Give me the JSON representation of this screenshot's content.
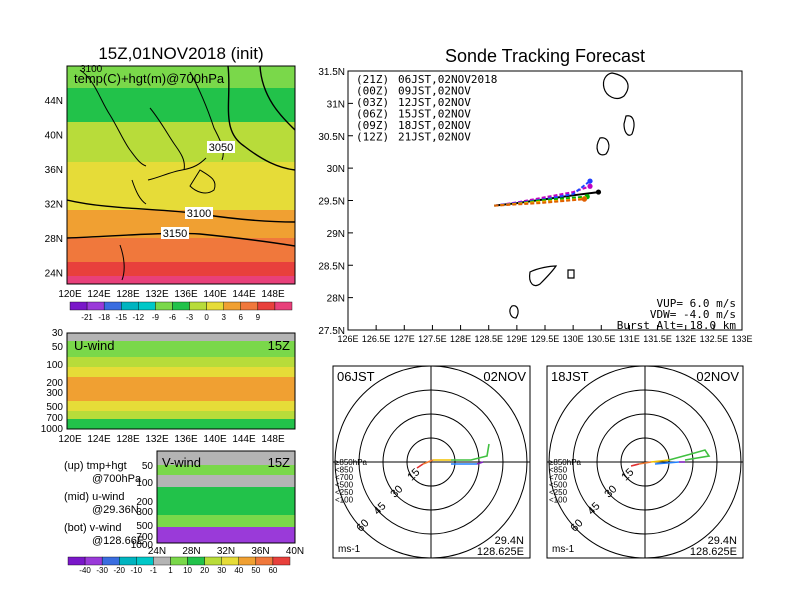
{
  "colors": {
    "purple": "#7a17c9",
    "magenta": "#c400b8",
    "violet": "#9a3ad9",
    "blue": "#3a6de0",
    "teal": "#00b4c0",
    "cyan": "#00c8c8",
    "lightgreen": "#7ad84a",
    "green": "#22c24a",
    "yellowgreen": "#b8dc3a",
    "yellow": "#e6dc38",
    "orange": "#f0a032",
    "orangered": "#f0783c",
    "red": "#e8403c",
    "pink": "#e8407a",
    "gray": "#b4b4b4",
    "track_21z": "#000000",
    "track_00z": "#c000c0",
    "track_03z": "#2040ff",
    "track_06z": "#00b000",
    "track_09z": "#f0b000",
    "track_12z": "#e06000"
  },
  "left": {
    "title": "15Z,01NOV2018 (init)",
    "map_label": "temp(C)+hgt(m)@700hPa",
    "contours": [
      "3050",
      "3100",
      "3150"
    ],
    "clipped_contour": "3100",
    "lat_labels": [
      "44N",
      "40N",
      "36N",
      "32N",
      "28N",
      "24N"
    ],
    "lon_labels": [
      "120E",
      "124E",
      "128E",
      "132E",
      "136E",
      "140E",
      "144E",
      "148E"
    ],
    "temp_colorbar_labels": [
      "-21",
      "-18",
      "-15",
      "-12",
      "-9",
      "-6",
      "-3",
      "0",
      "3",
      "6",
      "9"
    ],
    "uwind_label": "U-wind",
    "uwind_time": "15Z",
    "uwind_levels": [
      "30",
      "50",
      "100",
      "200",
      "300",
      "500",
      "700",
      "1000"
    ],
    "vwind_label": "V-wind",
    "vwind_time": "15Z",
    "vwind_levels": [
      "50",
      "100",
      "200",
      "300",
      "500",
      "700",
      "1000"
    ],
    "vwind_lat_labels": [
      "24N",
      "28N",
      "32N",
      "36N",
      "40N"
    ],
    "wind_colorbar_labels": [
      "-40",
      "-30",
      "-20",
      "-10",
      "-1",
      "1",
      "10",
      "20",
      "30",
      "40",
      "50",
      "60"
    ],
    "legend_up_1": "(up) tmp+hgt",
    "legend_up_2": "@700hPa",
    "legend_mid_1": "(mid) u-wind",
    "legend_mid_2": "@29.36N",
    "legend_bot_1": "(bot) v-wind",
    "legend_bot_2": "@128.66E"
  },
  "tracking": {
    "title": "Sonde Tracking Forecast",
    "entries": [
      {
        "code": "(21Z)",
        "time": "06JST,02NOV2018",
        "color": "#000000"
      },
      {
        "code": "(00Z)",
        "time": "09JST,02NOV",
        "color": "#c000c0"
      },
      {
        "code": "(03Z)",
        "time": "12JST,02NOV",
        "color": "#2040ff"
      },
      {
        "code": "(06Z)",
        "time": "15JST,02NOV",
        "color": "#00b000"
      },
      {
        "code": "(09Z)",
        "time": "18JST,02NOV",
        "color": "#f0b000"
      },
      {
        "code": "(12Z)",
        "time": "21JST,02NOV",
        "color": "#e06000"
      }
    ],
    "lat_labels": [
      "31.5N",
      "31N",
      "30.5N",
      "30N",
      "29.5N",
      "29N",
      "28.5N",
      "28N",
      "27.5N"
    ],
    "lon_labels": [
      "126E",
      "126.5E",
      "127E",
      "127.5E",
      "128E",
      "128.5E",
      "129E",
      "129.5E",
      "130E",
      "130.5E",
      "131E",
      "131.5E",
      "132E",
      "132.5E",
      "133E"
    ],
    "vup": "VUP=  6.0 m/s",
    "vdw": "VDW= -4.0 m/s",
    "burst": "Burst Alt= 18.0 km"
  },
  "hodo_left": {
    "jst": "06JST",
    "date": "02NOV",
    "rings": [
      "15",
      "30",
      "45",
      "60"
    ],
    "levels": [
      "≥850hPa",
      "<850",
      "<700",
      "<500",
      "<250",
      "<100"
    ],
    "lat": "29.4N",
    "lon": "128.625E",
    "unit": "ms-1"
  },
  "hodo_right": {
    "jst": "18JST",
    "date": "02NOV",
    "rings": [
      "15",
      "30",
      "45",
      "60"
    ],
    "levels": [
      "≥850hPa",
      "<850",
      "<700",
      "<500",
      "<250",
      "<100"
    ],
    "lat": "29.4N",
    "lon": "128.625E",
    "unit": "ms-1"
  },
  "chart_data": {
    "type": "line",
    "title": "Sonde Tracking Forecast",
    "xlabel": "",
    "ylabel": "",
    "xlim": [
      126,
      133
    ],
    "ylim": [
      27.5,
      31.5
    ],
    "series": [
      {
        "name": "(21Z) 06JST,02NOV2018",
        "x": [
          128.6,
          129.0,
          129.5,
          130.0,
          130.45
        ],
        "y": [
          29.42,
          29.46,
          29.52,
          29.58,
          29.63
        ]
      },
      {
        "name": "(00Z) 09JST,02NOV",
        "x": [
          128.6,
          129.0,
          129.5,
          130.0,
          130.3
        ],
        "y": [
          29.42,
          29.47,
          29.55,
          29.63,
          29.72
        ]
      },
      {
        "name": "(03Z) 12JST,02NOV",
        "x": [
          128.6,
          129.0,
          129.5,
          130.0,
          130.3
        ],
        "y": [
          29.42,
          29.46,
          29.52,
          29.6,
          29.8
        ]
      },
      {
        "name": "(06Z) 15JST,02NOV",
        "x": [
          128.6,
          129.0,
          129.4,
          129.8,
          130.25
        ],
        "y": [
          29.42,
          29.45,
          29.5,
          29.53,
          29.56
        ]
      },
      {
        "name": "(09Z) 18JST,02NOV",
        "x": [
          128.6,
          129.0,
          129.4,
          129.8,
          130.2
        ],
        "y": [
          29.42,
          29.45,
          29.48,
          29.5,
          29.53
        ]
      },
      {
        "name": "(12Z) 21JST,02NOV",
        "x": [
          128.6,
          129.0,
          129.4,
          129.8,
          130.2
        ],
        "y": [
          29.42,
          29.44,
          29.46,
          29.49,
          29.52
        ]
      }
    ]
  }
}
